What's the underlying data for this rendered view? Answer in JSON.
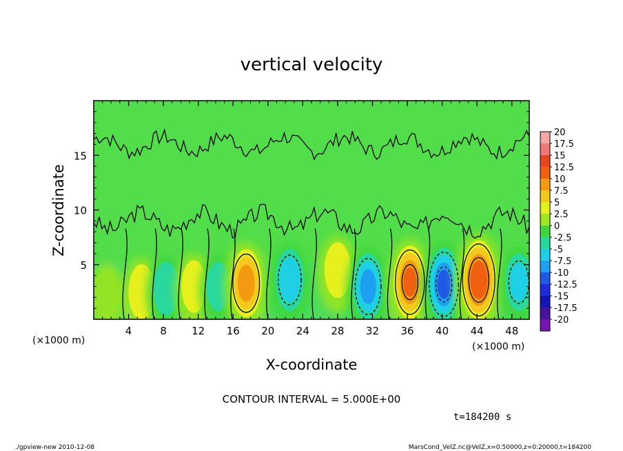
{
  "chart_data": {
    "type": "heatmap",
    "title": "vertical velocity",
    "xlabel": "X-coordinate",
    "ylabel": "Z-coordinate",
    "x_unit_left": "(×1000 m)",
    "x_unit_right": "(×1000 m)",
    "xlim": [
      0,
      50
    ],
    "ylim": [
      0,
      20
    ],
    "x_ticks": [
      "4",
      "8",
      "12",
      "16",
      "20",
      "24",
      "28",
      "32",
      "36",
      "40",
      "44",
      "48"
    ],
    "y_ticks": [
      "5",
      "10",
      "15"
    ],
    "contour_interval_text": "CONTOUR INTERVAL = 5.000E+00",
    "time_text": "t=184200 s",
    "colorbar": {
      "labels": [
        "20",
        "17.5",
        "15",
        "12.5",
        "10",
        "7.5",
        "5",
        "2.5",
        "0",
        "-2.5",
        "-5",
        "-7.5",
        "-10",
        "-12.5",
        "-15",
        "-17.5",
        "-20"
      ],
      "colors": [
        "#f4a6a6",
        "#f07878",
        "#e84820",
        "#f06010",
        "#f49a10",
        "#f4c81e",
        "#e6f01e",
        "#9ee61e",
        "#3cd83c",
        "#28d89e",
        "#1ecfe6",
        "#1ea0f0",
        "#1e5ae6",
        "#1e2ddc",
        "#1414b4",
        "#46149c",
        "#7814b4"
      ]
    },
    "cells": [
      {
        "x": 1.5,
        "z": 2.5,
        "w": 0.6
      },
      {
        "x": 5.5,
        "z": 2.5,
        "w": 4.5
      },
      {
        "x": 8.3,
        "z": 2.8,
        "w": -4
      },
      {
        "x": 11.5,
        "z": 3.0,
        "w": 3.5
      },
      {
        "x": 14.3,
        "z": 3.0,
        "w": -2.5
      },
      {
        "x": 17.5,
        "z": 3.3,
        "w": 8.5
      },
      {
        "x": 22.5,
        "z": 3.6,
        "w": -6.5
      },
      {
        "x": 28.0,
        "z": 4.5,
        "w": 4.5
      },
      {
        "x": 31.5,
        "z": 3.0,
        "w": -8
      },
      {
        "x": 36.3,
        "z": 3.4,
        "w": 10
      },
      {
        "x": 40.2,
        "z": 3.2,
        "w": -10
      },
      {
        "x": 44.2,
        "z": 3.6,
        "w": 12
      },
      {
        "x": 48.8,
        "z": 3.4,
        "w": -5
      }
    ],
    "grid": false
  },
  "footer": {
    "left": "./gpview-new  2010-12-08",
    "right": "MarsCond_VelZ.nc@VelZ,x=0:50000,z=0:20000,t=184200"
  }
}
